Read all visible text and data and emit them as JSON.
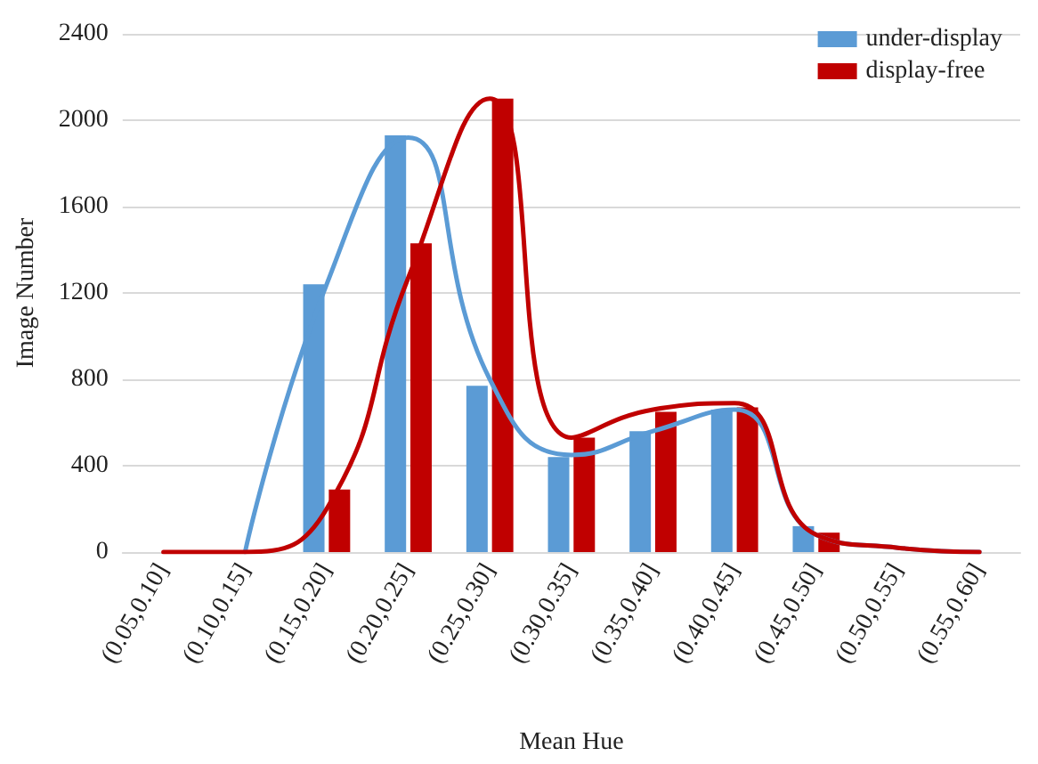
{
  "chart_data": {
    "type": "bar",
    "xlabel": "Mean Hue",
    "ylabel": "Image Number",
    "categories": [
      "(0.05,0.10]",
      "(0.10,0.15]",
      "(0.15,0.20]",
      "(0.20,0.25]",
      "(0.25,0.30]",
      "(0.30,0.35]",
      "(0.35,0.40]",
      "(0.40,0.45]",
      "(0.45,0.50]",
      "(0.50,0.55]",
      "(0.55,0.60]"
    ],
    "series": [
      {
        "name": "under-display",
        "color": "#5b9bd5",
        "values": [
          0,
          0,
          1240,
          1930,
          770,
          440,
          560,
          660,
          120,
          0,
          0
        ]
      },
      {
        "name": "display-free",
        "color": "#c00000",
        "values": [
          0,
          0,
          290,
          1430,
          2100,
          530,
          650,
          670,
          90,
          0,
          0
        ]
      },
      {
        "type": "line",
        "color": "#5b9bd5",
        "values": [
          null,
          0,
          1240,
          1920,
          800,
          450,
          560,
          660,
          80,
          20,
          0
        ]
      },
      {
        "type": "line",
        "color": "#c00000",
        "values": [
          0,
          0,
          200,
          1270,
          2100,
          530,
          660,
          690,
          80,
          20,
          0
        ]
      }
    ],
    "ylim": [
      0,
      2400
    ],
    "yticks": [
      0,
      400,
      800,
      1200,
      1600,
      2000,
      2400
    ],
    "grid": "y",
    "legend": "top right",
    "marker": "none",
    "line_style": "solid"
  }
}
